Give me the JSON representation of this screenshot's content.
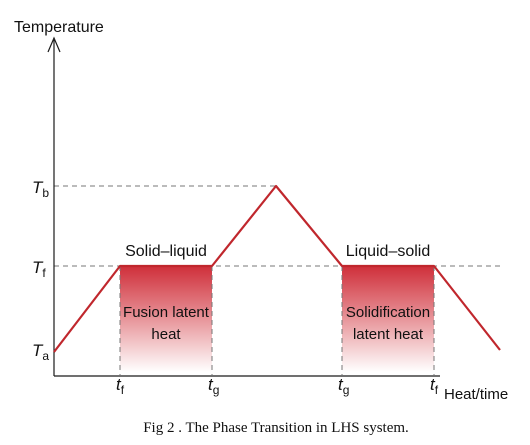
{
  "axes": {
    "y_label": "Temperature",
    "x_label": "Heat/time"
  },
  "temperature_levels": [
    {
      "main": "T",
      "sub": "b"
    },
    {
      "main": "T",
      "sub": "f"
    },
    {
      "main": "T",
      "sub": "a"
    }
  ],
  "time_marks": [
    {
      "main": "t",
      "sub": "f"
    },
    {
      "main": "t",
      "sub": "g"
    },
    {
      "main": "t",
      "sub": "g"
    },
    {
      "main": "t",
      "sub": "f"
    }
  ],
  "phase_labels": {
    "melting": "Solid–liquid",
    "freezing": "Liquid–solid"
  },
  "regions": {
    "fusion": [
      "Fusion latent",
      "heat"
    ],
    "solidification": [
      "Solidification",
      "latent heat"
    ]
  },
  "caption": "Fig 2 . The Phase Transition in LHS system.",
  "colors": {
    "curve": "#c0272d",
    "region_top": "#d0303a",
    "axis": "#1a1a1a",
    "guide": "#777777"
  }
}
